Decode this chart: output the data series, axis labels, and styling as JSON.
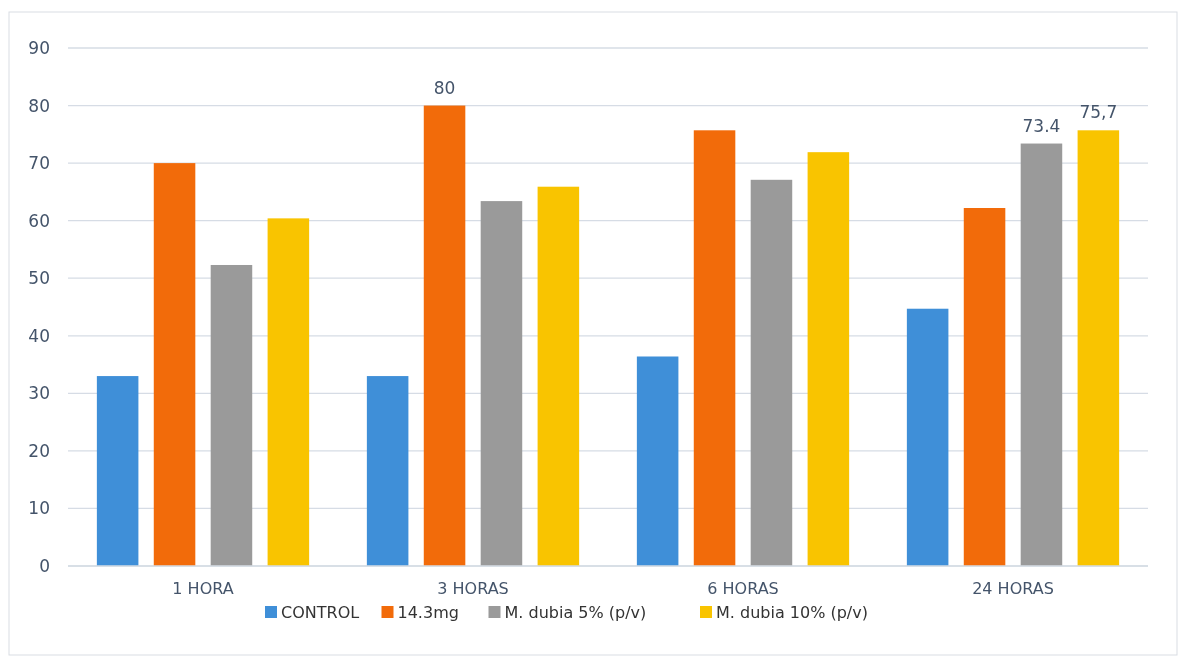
{
  "chart_data": {
    "type": "bar",
    "categories": [
      "1 HORA",
      "3 HORAS",
      "6 HORAS",
      "24 HORAS"
    ],
    "series": [
      {
        "name": "CONTROL",
        "color": "#3f8fd8",
        "values": [
          33,
          33,
          36.4,
          44.7
        ]
      },
      {
        "name": "14.3mg",
        "color": "#f26b0a",
        "values": [
          70,
          80,
          75.7,
          62.2
        ],
        "value_labels": [
          null,
          "80",
          null,
          null
        ]
      },
      {
        "name": "M. dubia 5% (p/v)",
        "color": "#9a9a9a",
        "values": [
          52.3,
          63.4,
          67.1,
          73.4
        ],
        "value_labels": [
          null,
          null,
          null,
          "73.4"
        ]
      },
      {
        "name": "M. dubia 10% (p/v)",
        "color": "#f9c400",
        "values": [
          60.4,
          65.9,
          71.9,
          75.7
        ],
        "value_labels": [
          null,
          null,
          null,
          "75,7"
        ]
      }
    ],
    "ylim": [
      0,
      90
    ],
    "yticks": [
      0,
      10,
      20,
      30,
      40,
      50,
      60,
      70,
      80,
      90
    ],
    "grid": "y",
    "legend": "bottom"
  }
}
